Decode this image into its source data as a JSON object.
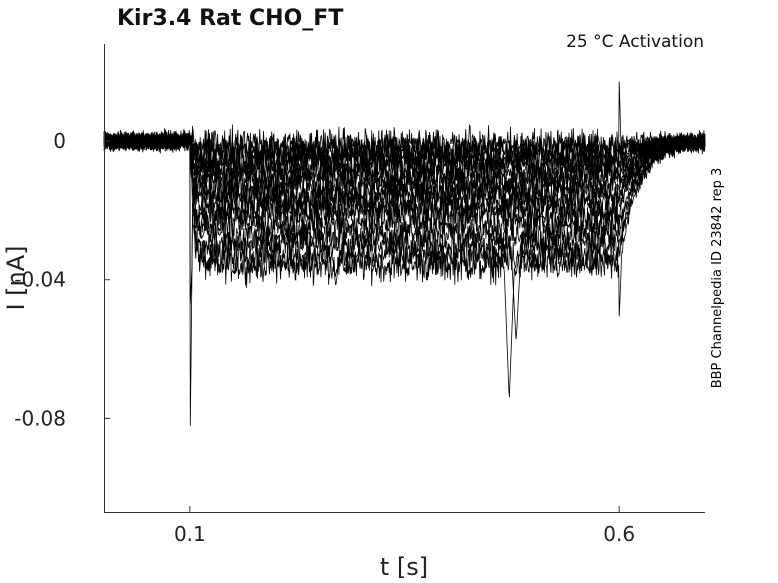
{
  "chart_data": {
    "type": "line",
    "title": "Kir3.4  Rat  CHO_FT",
    "subtitle": "25 °C  Activation",
    "side_note": "BBP Channelpedia ID 23842 rep 3",
    "xlabel": "t [s]",
    "ylabel": "I [nA]",
    "xlim": [
      0.0,
      0.7
    ],
    "ylim": [
      -0.107,
      0.028
    ],
    "x_ticks": [
      0.1,
      0.6
    ],
    "x_tick_labels": [
      "0.1",
      "0.6"
    ],
    "y_ticks": [
      0,
      -0.04,
      -0.08
    ],
    "y_tick_labels": [
      "0",
      "-0.04",
      "-0.08"
    ],
    "grid": false,
    "n_traces": 17,
    "stimulus_on": 0.1,
    "stimulus_off": 0.6,
    "trace_levels": [
      -0.036,
      -0.033,
      -0.03,
      -0.027,
      -0.024,
      -0.021,
      -0.019,
      -0.017,
      -0.015,
      -0.013,
      -0.011,
      -0.009,
      -0.007,
      -0.005,
      -0.004,
      -0.002,
      -0.001
    ],
    "features": {
      "onset_spike_min": -0.095,
      "late_dip_t": 0.472,
      "late_dip_min": -0.075,
      "offset_spike_max": 0.018,
      "offset_spike_min": -0.051
    }
  }
}
